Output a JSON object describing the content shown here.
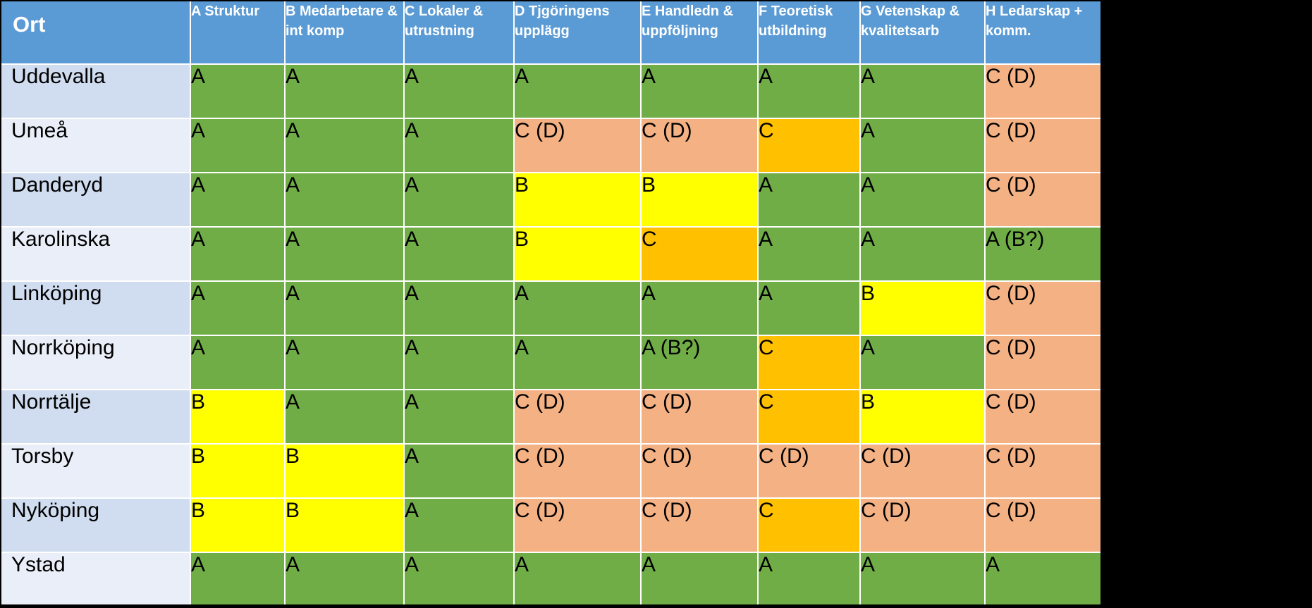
{
  "chart_data": {
    "type": "table",
    "header_label": "Ort",
    "columns": [
      "A Struktur",
      "B Medarbetare & int komp",
      "C Lokaler & utrustning",
      "D Tjgöringens upplägg",
      "E Handledn & uppföljning",
      "F Teoretisk utbildning",
      "G Vetenskap & kvalitetsarb",
      "H Ledarskap + komm."
    ],
    "rows": [
      {
        "place": "Uddevalla",
        "grades": [
          "A",
          "A",
          "A",
          "A",
          "A",
          "A",
          "A",
          "C (D)"
        ]
      },
      {
        "place": "Umeå",
        "grades": [
          "A",
          "A",
          "A",
          "C (D)",
          "C (D)",
          "C",
          "A",
          "C (D)"
        ]
      },
      {
        "place": "Danderyd",
        "grades": [
          "A",
          "A",
          "A",
          "B",
          "B",
          "A",
          "A",
          "C (D)"
        ]
      },
      {
        "place": "Karolinska",
        "grades": [
          "A",
          "A",
          "A",
          "B",
          "C",
          "A",
          "A",
          "A (B?)"
        ]
      },
      {
        "place": "Linköping",
        "grades": [
          "A",
          "A",
          "A",
          "A",
          "A",
          "A",
          "B",
          "C (D)"
        ]
      },
      {
        "place": "Norrköping",
        "grades": [
          "A",
          "A",
          "A",
          "A",
          "A (B?)",
          "C",
          "A",
          "C (D)"
        ]
      },
      {
        "place": "Norrtälje",
        "grades": [
          "B",
          "A",
          "A",
          "C (D)",
          "C (D)",
          "C",
          "B",
          "C (D)"
        ]
      },
      {
        "place": "Torsby",
        "grades": [
          "B",
          "B",
          "A",
          "C (D)",
          "C (D)",
          "C (D)",
          "C (D)",
          "C (D)"
        ]
      },
      {
        "place": "Nyköping",
        "grades": [
          "B",
          "B",
          "A",
          "C (D)",
          "C (D)",
          "C",
          "C (D)",
          "C (D)"
        ]
      },
      {
        "place": "Ystad",
        "grades": [
          "A",
          "A",
          "A",
          "A",
          "A",
          "A",
          "A",
          "A"
        ]
      }
    ],
    "grade_colors": {
      "A": "#70ad47",
      "A (B?)": "#70ad47",
      "B": "#ffff00",
      "C": "#ffc000",
      "C (D)": "#f4b183"
    },
    "header_color": "#5b9bd5"
  }
}
